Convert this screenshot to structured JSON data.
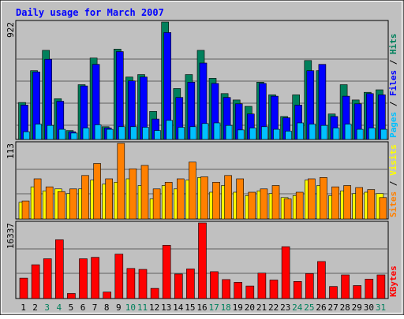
{
  "title": "Daily usage for March 2007",
  "colors": {
    "background": "#c0c0c0",
    "outer": "#e8e8e8",
    "title": "#0000ff",
    "grid": "#606060",
    "hits": "#00805c",
    "files": "#0000ff",
    "pages": "#00c0ff",
    "visits": "#ffff00",
    "sites": "#ff8000",
    "kbytes": "#ff0000",
    "weekday_label": "#000000",
    "weekend_label": "#00805c"
  },
  "chart_data": [
    {
      "type": "bar",
      "name": "hits-files-pages",
      "ymax_label": "922",
      "ymax": 922,
      "right_label": {
        "pages": "Pages",
        "sep1": " / ",
        "files": "Files",
        "sep2": " / ",
        "hits": "Hits"
      },
      "categories": [
        "1",
        "2",
        "3",
        "4",
        "5",
        "6",
        "7",
        "8",
        "9",
        "10",
        "11",
        "12",
        "13",
        "14",
        "15",
        "16",
        "17",
        "18",
        "19",
        "20",
        "21",
        "22",
        "23",
        "24",
        "25",
        "26",
        "27",
        "28",
        "29",
        "30",
        "31"
      ],
      "series": [
        {
          "name": "Hits",
          "values": [
            290,
            540,
            700,
            320,
            70,
            430,
            640,
            100,
            710,
            490,
            510,
            220,
            922,
            400,
            510,
            700,
            480,
            360,
            310,
            260,
            450,
            350,
            180,
            350,
            620,
            540,
            200,
            430,
            310,
            370,
            390
          ]
        },
        {
          "name": "Files",
          "values": [
            270,
            530,
            630,
            300,
            60,
            420,
            590,
            90,
            690,
            460,
            490,
            160,
            840,
            330,
            450,
            600,
            440,
            330,
            280,
            200,
            440,
            340,
            170,
            270,
            540,
            590,
            180,
            340,
            280,
            360,
            350
          ]
        },
        {
          "name": "Pages",
          "values": [
            60,
            120,
            110,
            80,
            50,
            90,
            115,
            80,
            100,
            100,
            95,
            70,
            150,
            95,
            100,
            125,
            130,
            110,
            75,
            90,
            100,
            80,
            65,
            130,
            120,
            110,
            90,
            120,
            80,
            90,
            80
          ]
        }
      ]
    },
    {
      "type": "bar",
      "name": "visits-sites",
      "ymax_label": "113",
      "ymax": 113,
      "right_label": {
        "sites": "Sites",
        "sep": " / ",
        "visits": "Visits"
      },
      "categories": [
        "1",
        "2",
        "3",
        "4",
        "5",
        "6",
        "7",
        "8",
        "9",
        "10",
        "11",
        "12",
        "13",
        "14",
        "15",
        "16",
        "17",
        "18",
        "19",
        "20",
        "21",
        "22",
        "23",
        "24",
        "25",
        "26",
        "27",
        "28",
        "29",
        "30",
        "31"
      ],
      "series": [
        {
          "name": "Visits",
          "values": [
            25,
            48,
            42,
            45,
            38,
            45,
            58,
            52,
            55,
            60,
            50,
            30,
            50,
            45,
            58,
            62,
            40,
            50,
            40,
            35,
            42,
            38,
            32,
            35,
            58,
            50,
            35,
            42,
            38,
            40,
            38
          ]
        },
        {
          "name": "Sites",
          "values": [
            27,
            60,
            48,
            41,
            45,
            65,
            83,
            60,
            113,
            75,
            80,
            45,
            55,
            60,
            85,
            63,
            55,
            65,
            60,
            40,
            45,
            50,
            30,
            40,
            60,
            62,
            48,
            50,
            47,
            44,
            32
          ]
        }
      ]
    },
    {
      "type": "bar",
      "name": "kbytes",
      "ymax_label": "16337",
      "ymax": 16337,
      "right_label": {
        "kbytes": "KBytes"
      },
      "categories": [
        "1",
        "2",
        "3",
        "4",
        "5",
        "6",
        "7",
        "8",
        "9",
        "10",
        "11",
        "12",
        "13",
        "14",
        "15",
        "16",
        "17",
        "18",
        "19",
        "20",
        "21",
        "22",
        "23",
        "24",
        "25",
        "26",
        "27",
        "28",
        "29",
        "30",
        "31"
      ],
      "series": [
        {
          "name": "KBytes",
          "values": [
            4400,
            7300,
            8600,
            12700,
            1100,
            8600,
            8900,
            1400,
            9600,
            6500,
            6300,
            2200,
            11500,
            5300,
            6400,
            16337,
            5800,
            4100,
            3500,
            2700,
            5500,
            4000,
            11200,
            3700,
            5400,
            8000,
            2600,
            5100,
            2800,
            4200,
            5100
          ]
        }
      ]
    }
  ],
  "x_labels": [
    {
      "day": "1",
      "weekend": false
    },
    {
      "day": "2",
      "weekend": false
    },
    {
      "day": "3",
      "weekend": true
    },
    {
      "day": "4",
      "weekend": true
    },
    {
      "day": "5",
      "weekend": false
    },
    {
      "day": "6",
      "weekend": false
    },
    {
      "day": "7",
      "weekend": false
    },
    {
      "day": "8",
      "weekend": false
    },
    {
      "day": "9",
      "weekend": false
    },
    {
      "day": "10",
      "weekend": true
    },
    {
      "day": "11",
      "weekend": true
    },
    {
      "day": "12",
      "weekend": false
    },
    {
      "day": "13",
      "weekend": false
    },
    {
      "day": "14",
      "weekend": false
    },
    {
      "day": "15",
      "weekend": false
    },
    {
      "day": "16",
      "weekend": false
    },
    {
      "day": "17",
      "weekend": true
    },
    {
      "day": "18",
      "weekend": true
    },
    {
      "day": "19",
      "weekend": false
    },
    {
      "day": "20",
      "weekend": false
    },
    {
      "day": "21",
      "weekend": false
    },
    {
      "day": "22",
      "weekend": false
    },
    {
      "day": "23",
      "weekend": false
    },
    {
      "day": "24",
      "weekend": true
    },
    {
      "day": "25",
      "weekend": true
    },
    {
      "day": "26",
      "weekend": false
    },
    {
      "day": "27",
      "weekend": false
    },
    {
      "day": "28",
      "weekend": false
    },
    {
      "day": "29",
      "weekend": false
    },
    {
      "day": "30",
      "weekend": false
    },
    {
      "day": "31",
      "weekend": true
    }
  ]
}
